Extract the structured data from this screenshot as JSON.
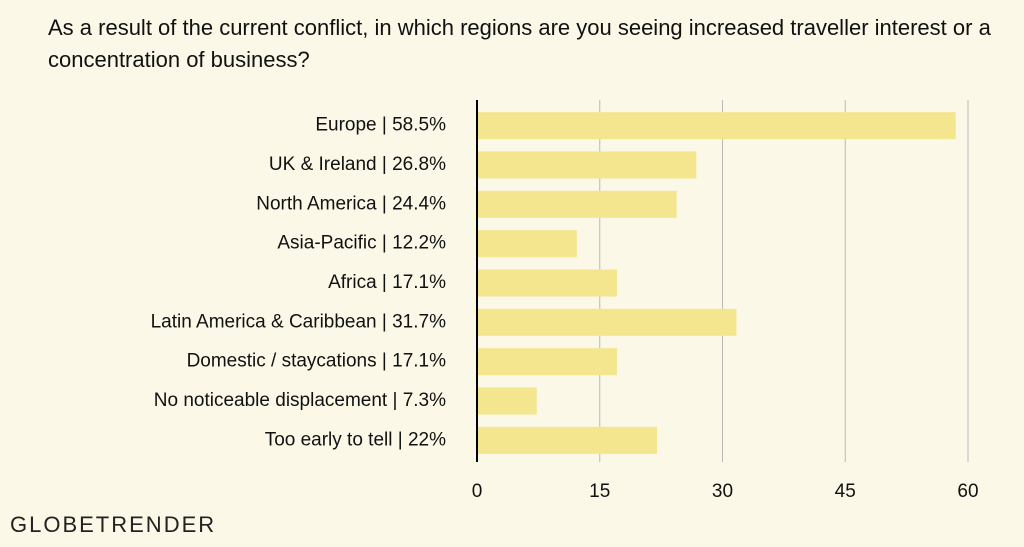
{
  "brand": "GLOBETRENDER",
  "chart_data": {
    "type": "bar",
    "orientation": "horizontal",
    "title": "As a result of the current conflict, in which regions are you seeing increased traveller interest or a concentration of business?",
    "categories": [
      "Europe | 58.5%",
      "UK & Ireland | 26.8%",
      "North America | 24.4%",
      "Asia-Pacific | 12.2%",
      "Africa | 17.1%",
      "Latin America & Caribbean | 31.7%",
      "Domestic / staycations | 17.1%",
      "No noticeable displacement | 7.3%",
      "Too early to tell | 22%"
    ],
    "values": [
      58.5,
      26.8,
      24.4,
      12.2,
      17.1,
      31.7,
      17.1,
      7.3,
      22
    ],
    "color": "#f3e68e",
    "xlim": [
      0,
      60
    ],
    "xticks": [
      0,
      15,
      30,
      45,
      60
    ],
    "grid": true
  }
}
